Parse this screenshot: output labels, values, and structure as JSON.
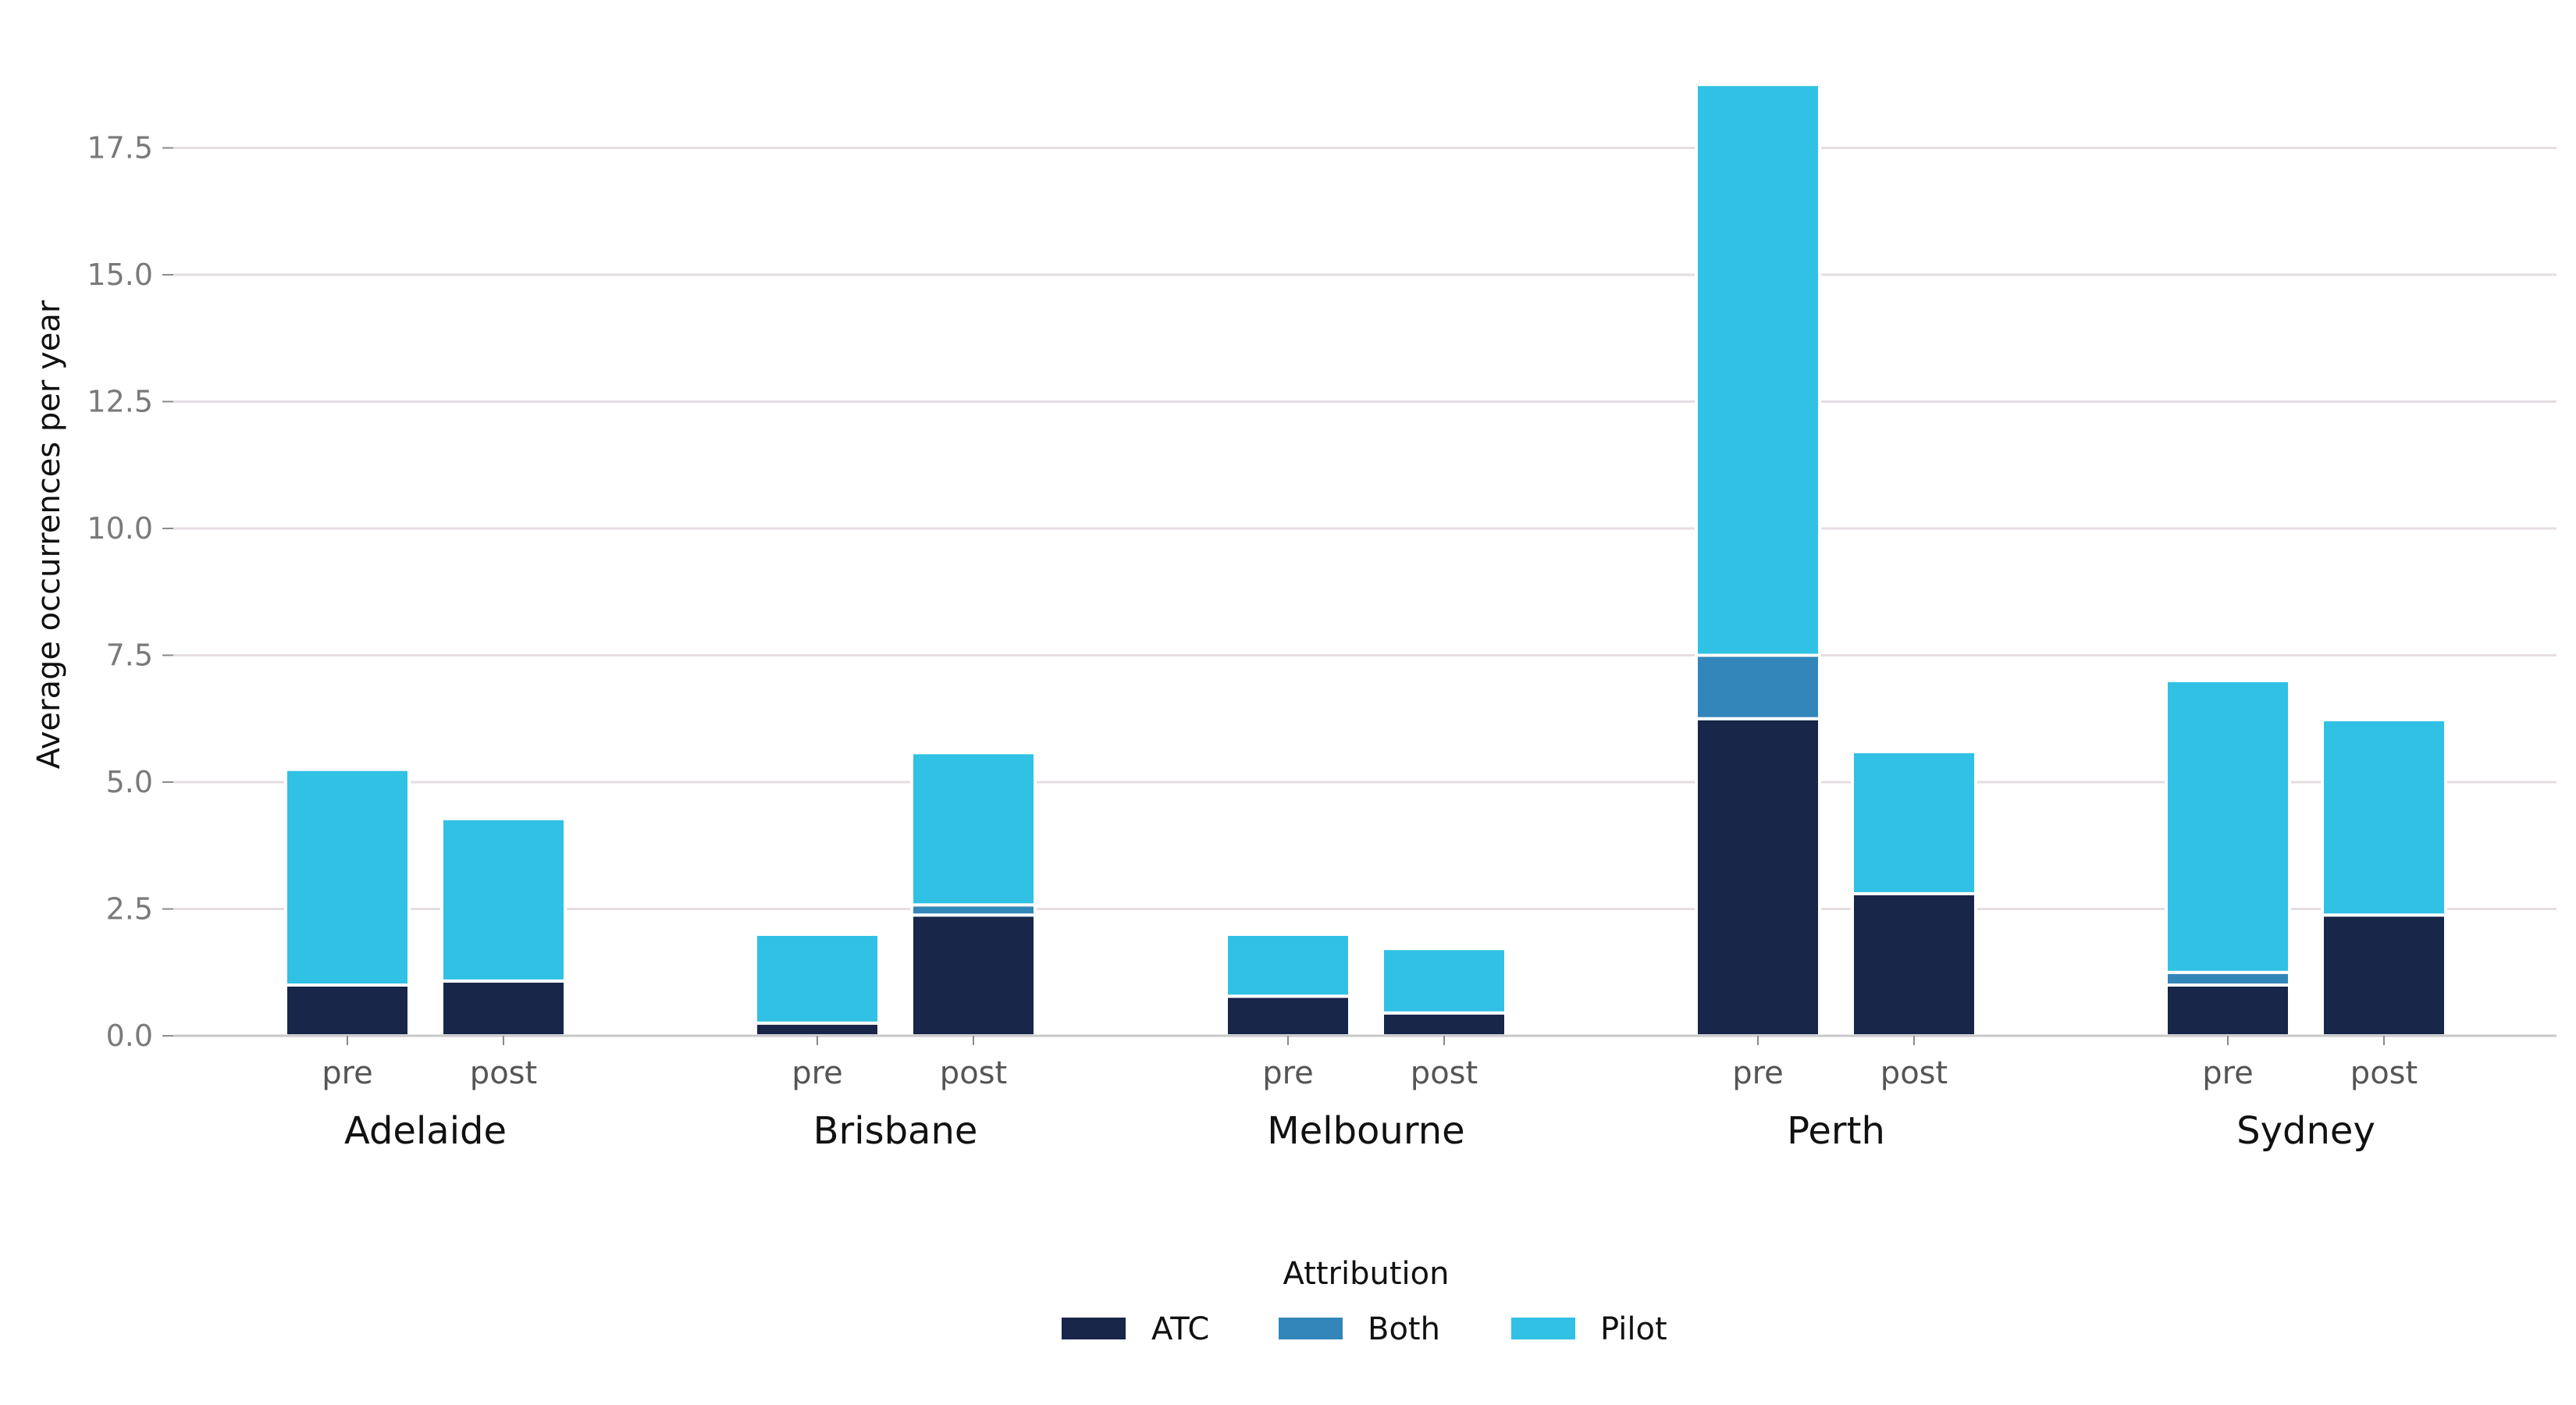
{
  "chart_data": {
    "type": "bar",
    "stacked": true,
    "ylabel": "Average occurrences per year",
    "ylim": [
      0,
      19
    ],
    "yticks": [
      0.0,
      2.5,
      5.0,
      7.5,
      10.0,
      12.5,
      15.0,
      17.5
    ],
    "ytick_labels": [
      "0.0",
      "2.5",
      "5.0",
      "7.5",
      "10.0",
      "12.5",
      "15.0",
      "17.5"
    ],
    "grid": true,
    "groups": [
      "Adelaide",
      "Brisbane",
      "Melbourne",
      "Perth",
      "Sydney"
    ],
    "subcategories": [
      "pre",
      "post"
    ],
    "legend": {
      "title": "Attribution",
      "placement": "bottom-center"
    },
    "series": [
      {
        "name": "ATC",
        "color": "#172649",
        "values": [
          [
            1.0,
            1.08
          ],
          [
            0.25,
            2.38
          ],
          [
            0.78,
            0.45
          ],
          [
            6.25,
            2.8
          ],
          [
            1.0,
            2.38
          ]
        ]
      },
      {
        "name": "Both",
        "color": "#3386b9",
        "values": [
          [
            0.0,
            0.0
          ],
          [
            0.0,
            0.2
          ],
          [
            0.0,
            0.0
          ],
          [
            1.25,
            0.0
          ],
          [
            0.25,
            0.0
          ]
        ]
      },
      {
        "name": "Pilot",
        "color": "#30c1e4",
        "values": [
          [
            4.25,
            3.2
          ],
          [
            1.75,
            3.0
          ],
          [
            1.22,
            1.27
          ],
          [
            11.25,
            2.8
          ],
          [
            5.75,
            3.85
          ]
        ]
      }
    ]
  }
}
